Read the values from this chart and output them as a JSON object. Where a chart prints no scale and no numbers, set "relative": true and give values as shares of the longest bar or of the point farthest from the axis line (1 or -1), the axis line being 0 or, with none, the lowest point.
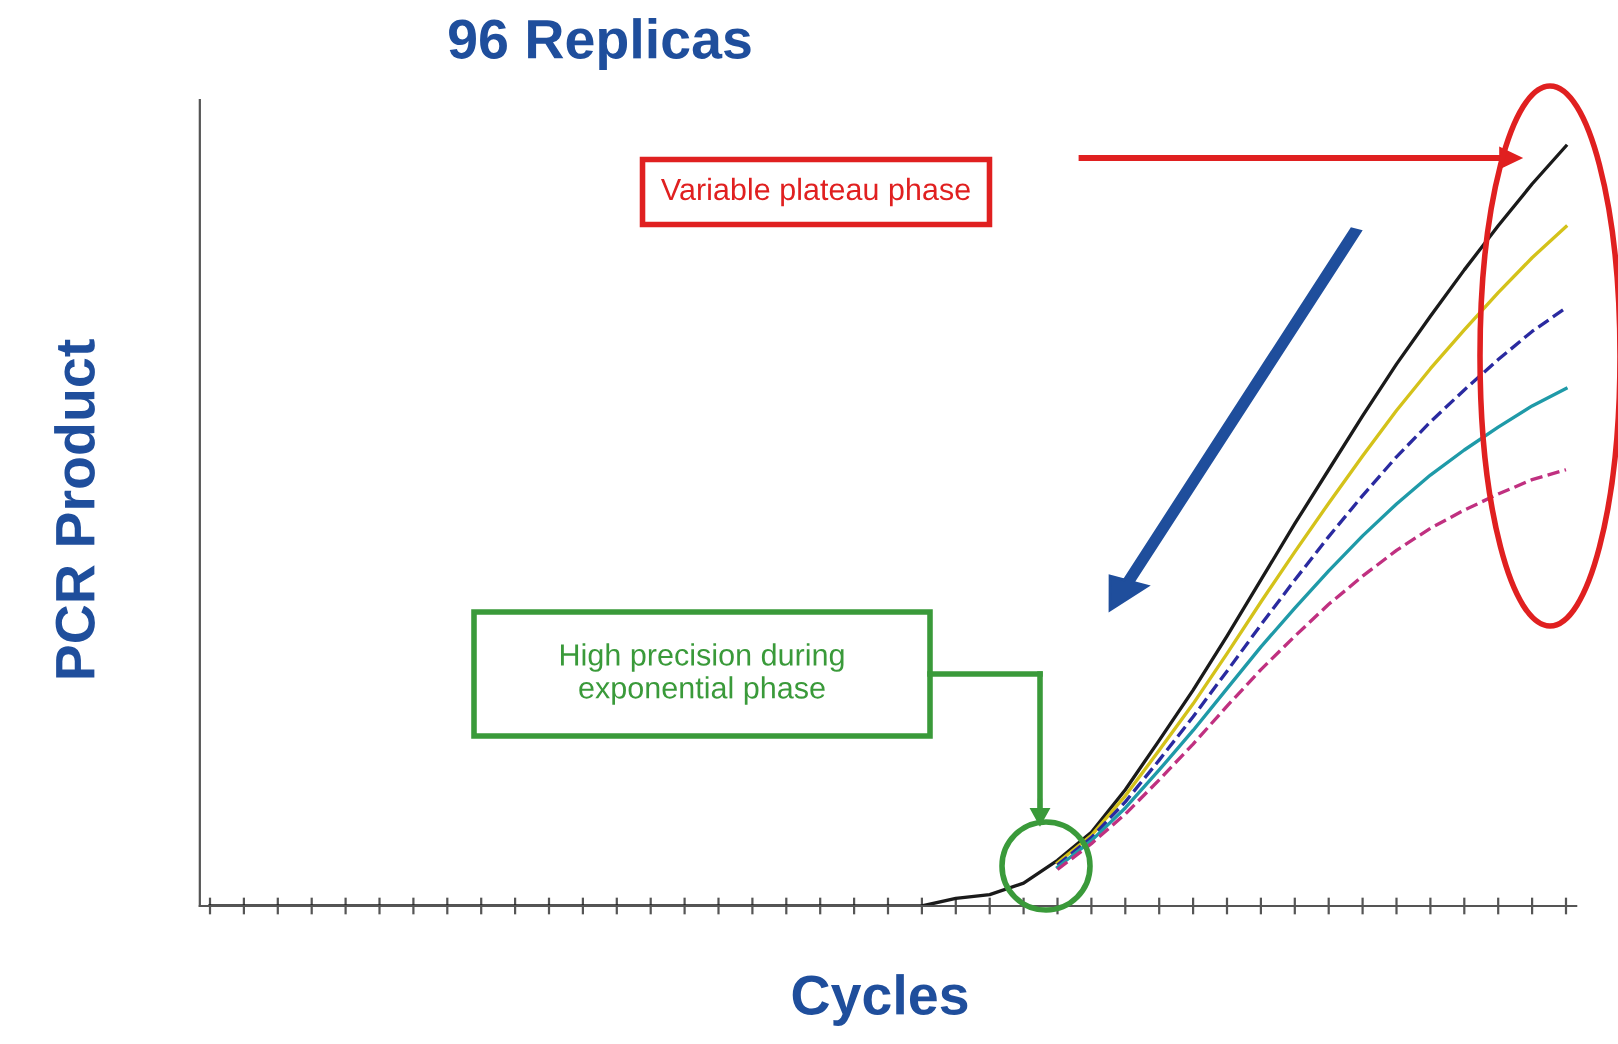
{
  "chart_data": {
    "type": "line",
    "title": "96 Replicas",
    "xlabel": "Cycles",
    "ylabel": "PCR Product",
    "relative": true,
    "grid": false,
    "legend": false,
    "marker": "none",
    "categories": [
      null,
      null,
      null,
      null,
      null,
      null,
      null,
      null,
      null,
      null,
      null,
      null,
      null,
      null,
      null,
      null,
      null,
      null,
      null,
      null,
      null,
      null,
      null,
      null,
      null,
      null,
      null,
      null,
      null,
      null,
      null,
      null,
      null,
      null,
      null,
      null,
      null,
      null,
      null,
      null,
      null
    ],
    "series": [
      {
        "color": "#1a1a1a",
        "line_style": "solid",
        "values": [
          0,
          0,
          0,
          0,
          0,
          0,
          0,
          0,
          0,
          0,
          0,
          0,
          0,
          0,
          0,
          0,
          0,
          0,
          0,
          0,
          0,
          0,
          0.01,
          0.015,
          0.03,
          0.06,
          0.097,
          0.153,
          0.218,
          0.284,
          0.355,
          0.429,
          0.503,
          0.574,
          0.645,
          0.713,
          0.776,
          0.837,
          0.895,
          0.95,
          1.0
        ]
      },
      {
        "color": "#d4c21a",
        "line_style": "solid",
        "values": [
          null,
          null,
          null,
          null,
          null,
          null,
          null,
          null,
          null,
          null,
          null,
          null,
          null,
          null,
          null,
          null,
          null,
          null,
          null,
          null,
          null,
          null,
          null,
          null,
          null,
          0.057,
          0.093,
          0.145,
          0.205,
          0.266,
          0.332,
          0.4,
          0.466,
          0.53,
          0.592,
          0.652,
          0.707,
          0.758,
          0.807,
          0.853,
          0.894
        ]
      },
      {
        "color": "#2a2aa0",
        "line_style": "dashed",
        "values": [
          null,
          null,
          null,
          null,
          null,
          null,
          null,
          null,
          null,
          null,
          null,
          null,
          null,
          null,
          null,
          null,
          null,
          null,
          null,
          null,
          null,
          null,
          null,
          null,
          null,
          0.054,
          0.09,
          0.137,
          0.192,
          0.249,
          0.309,
          0.37,
          0.429,
          0.486,
          0.54,
          0.591,
          0.637,
          0.679,
          0.719,
          0.756,
          0.787
        ]
      },
      {
        "color": "#1f9aa8",
        "line_style": "solid",
        "values": [
          null,
          null,
          null,
          null,
          null,
          null,
          null,
          null,
          null,
          null,
          null,
          null,
          null,
          null,
          null,
          null,
          null,
          null,
          null,
          null,
          null,
          null,
          null,
          null,
          null,
          0.051,
          0.086,
          0.129,
          0.179,
          0.231,
          0.286,
          0.341,
          0.392,
          0.441,
          0.487,
          0.529,
          0.567,
          0.6,
          0.63,
          0.658,
          0.681
        ]
      },
      {
        "color": "#c03080",
        "line_style": "dashed",
        "values": [
          null,
          null,
          null,
          null,
          null,
          null,
          null,
          null,
          null,
          null,
          null,
          null,
          null,
          null,
          null,
          null,
          null,
          null,
          null,
          null,
          null,
          null,
          null,
          null,
          null,
          0.048,
          0.082,
          0.121,
          0.166,
          0.213,
          0.263,
          0.311,
          0.355,
          0.397,
          0.434,
          0.468,
          0.497,
          0.521,
          0.542,
          0.561,
          0.574
        ]
      }
    ],
    "annotations": [
      "Variable plateau phase",
      "High precision during\nexponential phase"
    ]
  }
}
